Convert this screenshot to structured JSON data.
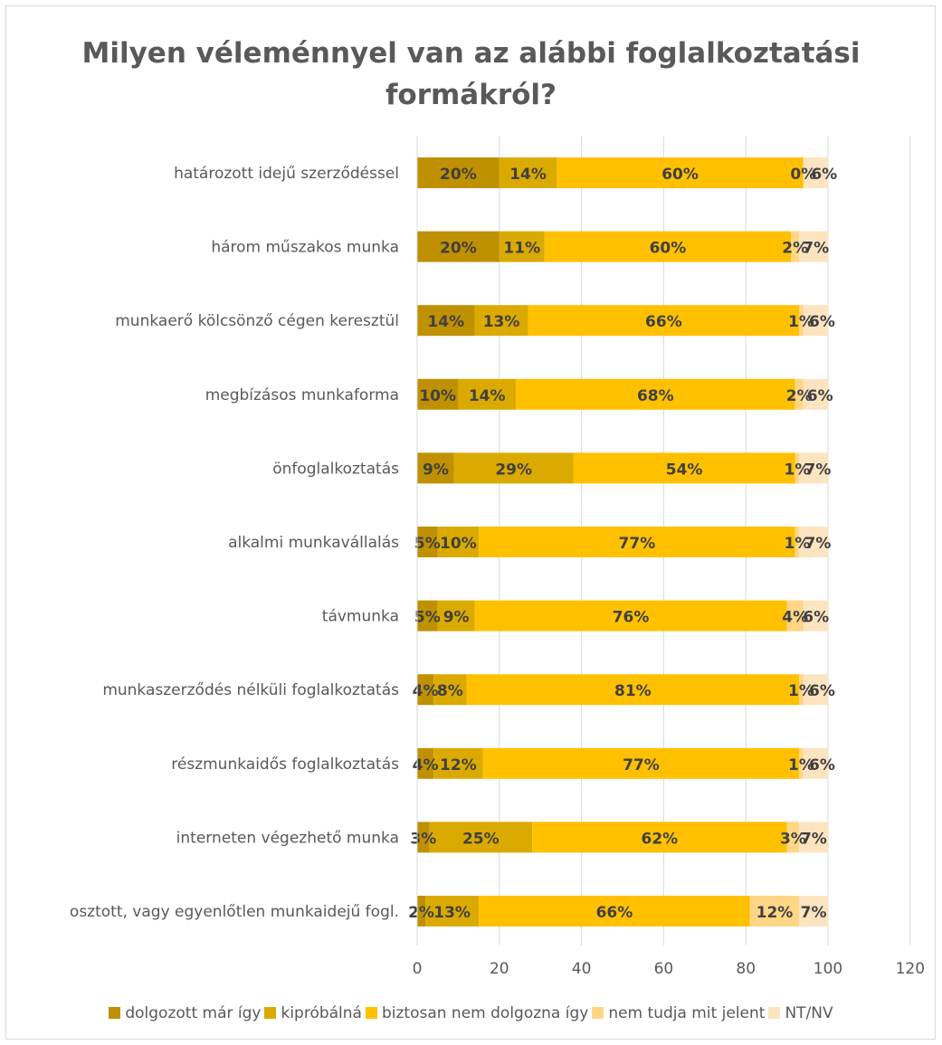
{
  "chart_data": {
    "type": "bar",
    "orientation": "horizontal",
    "stacked": true,
    "title": "Milyen véleménnyel van az alábbi foglalkoztatási formákról?",
    "title_lines": [
      "Milyen véleménnyel van az alábbi foglalkoztatási",
      "formákról?"
    ],
    "categories": [
      "határozott idejű szerződéssel",
      "három műszakos munka",
      "munkaerő kölcsönző cégen keresztül",
      "megbízásos munkaforma",
      "önfoglalkoztatás",
      "alkalmi munkavállalás",
      "távmunka",
      "munkaszerződés nélküli foglalkoztatás",
      "részmunkaidős foglalkoztatás",
      "interneten végezhető munka",
      "osztott, vagy egyenlőtlen munkaidejű fogl."
    ],
    "series": [
      {
        "name": "dolgozott már így",
        "color": "#bf9000",
        "values": [
          20,
          20,
          14,
          10,
          9,
          5,
          5,
          4,
          4,
          3,
          2
        ]
      },
      {
        "name": "kipróbálná",
        "color": "#dbaa00",
        "values": [
          14,
          11,
          13,
          14,
          29,
          10,
          9,
          8,
          12,
          25,
          13
        ]
      },
      {
        "name": "biztosan nem dolgozna így",
        "color": "#ffc000",
        "values": [
          60,
          60,
          66,
          68,
          54,
          77,
          76,
          81,
          77,
          62,
          66
        ]
      },
      {
        "name": "nem tudja mit jelent",
        "color": "#ffd685",
        "values": [
          0,
          2,
          1,
          2,
          1,
          1,
          4,
          1,
          1,
          3,
          12
        ]
      },
      {
        "name": "NT/NV",
        "color": "#fde4c0",
        "values": [
          6,
          7,
          6,
          6,
          7,
          7,
          6,
          6,
          6,
          7,
          7
        ]
      }
    ],
    "data_label_suffix": "%",
    "xlim": [
      0,
      120
    ],
    "xticks": [
      "0",
      "20",
      "40",
      "60",
      "80",
      "100",
      "120"
    ],
    "grid": true,
    "legend_position": "bottom"
  }
}
